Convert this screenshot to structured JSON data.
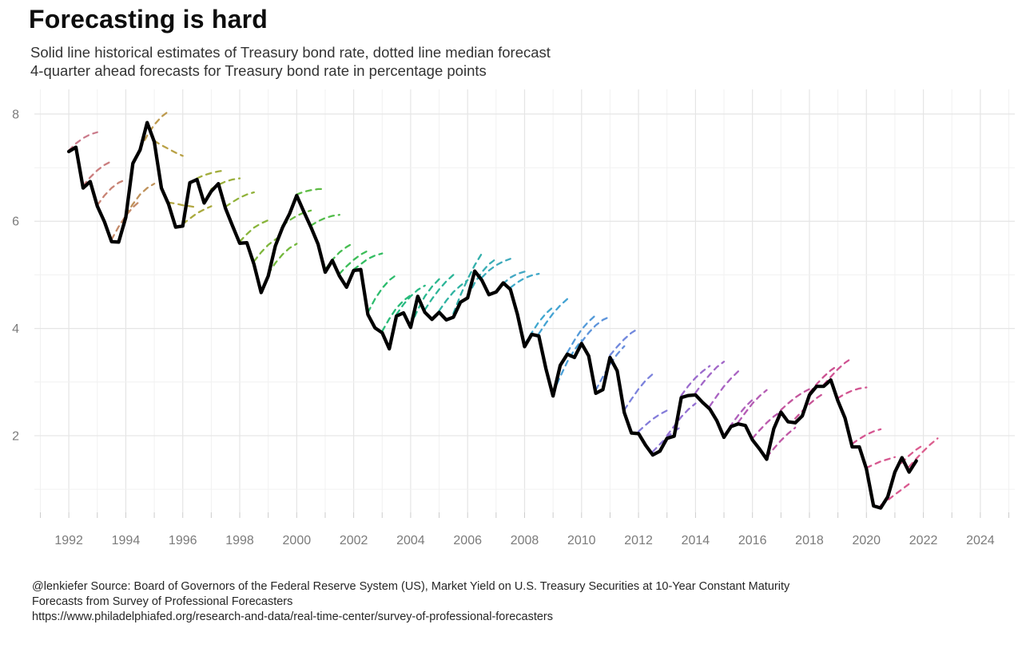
{
  "header": {
    "title": "Forecasting is hard",
    "subtitle_line1": "Solid line historical estimates of Treasury bond rate, dotted line median forecast",
    "subtitle_line2": "4-quarter ahead forecasts for Treasury bond rate in percentage points"
  },
  "footer": {
    "line1": "@lenkiefer Source: Board of Governors of the Federal Reserve System (US), Market Yield on U.S. Treasury Securities at 10-Year Constant Maturity",
    "line2": "Forecasts from Survey of Professional Forecasters",
    "line3": "https://www.philadelphiafed.org/research-and-data/real-time-center/survey-of-professional-forecasters"
  },
  "chart_data": {
    "type": "line",
    "title": "Forecasting is hard",
    "xlabel": "",
    "ylabel": "",
    "x_domain": [
      1990.79,
      2025.21
    ],
    "y_domain": [
      0.57,
      8.46
    ],
    "x_tick_labels": [
      1992,
      1994,
      1996,
      1998,
      2000,
      2002,
      2004,
      2006,
      2008,
      2010,
      2012,
      2014,
      2016,
      2018,
      2020,
      2022,
      2024
    ],
    "y_tick_labels": [
      2,
      4,
      6,
      8
    ],
    "grid": {
      "major_color": "#e5e5e5",
      "minor_color": "#f1f1f1",
      "tick_color": "#cccccc",
      "x_minor_step": 1,
      "y_minor": [
        1,
        3,
        5,
        7
      ],
      "y_major": [
        2,
        4,
        6,
        8
      ]
    },
    "legend": "none",
    "historical": {
      "name": "Historical estimates of Treasury bond rate (10-Year Constant Maturity)",
      "color": "#000000",
      "x_start": 1992.0,
      "x_step": 0.25,
      "values": [
        7.3,
        7.38,
        6.62,
        6.74,
        6.28,
        5.99,
        5.62,
        5.61,
        6.07,
        7.08,
        7.33,
        7.84,
        7.48,
        6.62,
        6.32,
        5.89,
        5.91,
        6.72,
        6.78,
        6.34,
        6.56,
        6.7,
        6.24,
        5.91,
        5.59,
        5.6,
        5.2,
        4.67,
        4.98,
        5.54,
        5.88,
        6.14,
        6.48,
        6.18,
        5.89,
        5.57,
        5.05,
        5.27,
        4.98,
        4.77,
        5.08,
        5.1,
        4.26,
        4.01,
        3.92,
        3.62,
        4.23,
        4.29,
        4.02,
        4.6,
        4.3,
        4.17,
        4.3,
        4.16,
        4.21,
        4.49,
        4.57,
        5.07,
        4.9,
        4.63,
        4.68,
        4.85,
        4.73,
        4.26,
        3.66,
        3.89,
        3.86,
        3.25,
        2.74,
        3.31,
        3.52,
        3.46,
        3.72,
        3.49,
        2.79,
        2.86,
        3.46,
        3.21,
        2.43,
        2.05,
        2.04,
        1.82,
        1.64,
        1.71,
        1.95,
        1.99,
        2.71,
        2.75,
        2.76,
        2.62,
        2.5,
        2.28,
        1.97,
        2.17,
        2.22,
        2.19,
        1.92,
        1.75,
        1.56,
        2.13,
        2.44,
        2.26,
        2.24,
        2.37,
        2.76,
        2.92,
        2.92,
        3.04,
        2.65,
        2.33,
        1.79,
        1.79,
        1.38,
        0.69,
        0.65,
        0.86,
        1.32,
        1.59,
        1.32,
        1.53
      ]
    },
    "forecast_series": {
      "name": "Median 4-quarter ahead forecasts, Survey of Professional Forecasters",
      "style": "dashed",
      "x_step": 0.25,
      "segments": [
        {
          "start": 1992.0,
          "color": "#cb7c8c",
          "values": [
            7.32,
            7.45,
            7.55,
            7.62,
            7.66
          ]
        },
        {
          "start": 1992.5,
          "color": "#cb7e7f",
          "values": [
            6.66,
            6.82,
            6.95,
            7.05,
            7.12
          ]
        },
        {
          "start": 1993.0,
          "color": "#c88374",
          "values": [
            6.3,
            6.48,
            6.62,
            6.72,
            6.78
          ]
        },
        {
          "start": 1993.5,
          "color": "#c48a69",
          "values": [
            5.66,
            5.9,
            6.1,
            6.26,
            6.38
          ]
        },
        {
          "start": 1994.0,
          "color": "#bf925b",
          "values": [
            6.12,
            6.32,
            6.5,
            6.62,
            6.7
          ]
        },
        {
          "start": 1994.5,
          "color": "#bd9a4e",
          "values": [
            7.35,
            7.6,
            7.8,
            7.95,
            8.05
          ]
        },
        {
          "start": 1995.0,
          "color": "#b9a146",
          "values": [
            7.5,
            7.42,
            7.35,
            7.28,
            7.22
          ]
        },
        {
          "start": 1995.5,
          "color": "#b2a742",
          "values": [
            6.35,
            6.33,
            6.3,
            6.28,
            6.26
          ]
        },
        {
          "start": 1996.0,
          "color": "#aaaa3e",
          "values": [
            5.95,
            6.05,
            6.15,
            6.22,
            6.28
          ]
        },
        {
          "start": 1996.5,
          "color": "#a2ad3c",
          "values": [
            6.8,
            6.86,
            6.9,
            6.93,
            6.95
          ]
        },
        {
          "start": 1997.0,
          "color": "#9aaf3b",
          "values": [
            6.6,
            6.68,
            6.74,
            6.78,
            6.8
          ]
        },
        {
          "start": 1997.5,
          "color": "#91b23a",
          "values": [
            6.27,
            6.36,
            6.44,
            6.5,
            6.54
          ]
        },
        {
          "start": 1998.0,
          "color": "#88b43a",
          "values": [
            5.62,
            5.76,
            5.88,
            5.96,
            6.02
          ]
        },
        {
          "start": 1998.5,
          "color": "#7eb63b",
          "values": [
            5.25,
            5.42,
            5.56,
            5.66,
            5.74
          ]
        },
        {
          "start": 1999.0,
          "color": "#73b83d",
          "values": [
            5.02,
            5.22,
            5.38,
            5.5,
            5.58
          ]
        },
        {
          "start": 1999.5,
          "color": "#68ba40",
          "values": [
            5.92,
            6.02,
            6.1,
            6.16,
            6.2
          ]
        },
        {
          "start": 2000.0,
          "color": "#5dbb44",
          "values": [
            6.5,
            6.55,
            6.58,
            6.6,
            6.6
          ]
        },
        {
          "start": 2000.5,
          "color": "#51bc49",
          "values": [
            5.92,
            6.0,
            6.06,
            6.1,
            6.12
          ]
        },
        {
          "start": 2001.0,
          "color": "#46bd50",
          "values": [
            5.1,
            5.28,
            5.42,
            5.52,
            5.6
          ]
        },
        {
          "start": 2001.5,
          "color": "#3cbd58",
          "values": [
            5.02,
            5.16,
            5.28,
            5.38,
            5.45
          ]
        },
        {
          "start": 2002.0,
          "color": "#33bd62",
          "values": [
            5.1,
            5.2,
            5.3,
            5.36,
            5.4
          ]
        },
        {
          "start": 2002.5,
          "color": "#2dbc6d",
          "values": [
            4.3,
            4.55,
            4.75,
            4.9,
            5.0
          ]
        },
        {
          "start": 2003.0,
          "color": "#29bb78",
          "values": [
            3.95,
            4.18,
            4.38,
            4.52,
            4.62
          ]
        },
        {
          "start": 2003.5,
          "color": "#28b983",
          "values": [
            4.26,
            4.45,
            4.6,
            4.72,
            4.8
          ]
        },
        {
          "start": 2004.0,
          "color": "#29b78e",
          "values": [
            4.05,
            4.35,
            4.6,
            4.78,
            4.92
          ]
        },
        {
          "start": 2004.5,
          "color": "#2cb598",
          "values": [
            4.35,
            4.55,
            4.73,
            4.88,
            5.0
          ]
        },
        {
          "start": 2005.0,
          "color": "#2fb3a2",
          "values": [
            4.33,
            4.52,
            4.68,
            4.8,
            4.9
          ]
        },
        {
          "start": 2005.5,
          "color": "#33b0ab",
          "values": [
            4.28,
            4.62,
            4.92,
            5.18,
            5.4
          ]
        },
        {
          "start": 2006.0,
          "color": "#38adb4",
          "values": [
            4.6,
            4.85,
            5.05,
            5.2,
            5.3
          ]
        },
        {
          "start": 2006.5,
          "color": "#3daabc",
          "values": [
            4.95,
            5.08,
            5.18,
            5.25,
            5.3
          ]
        },
        {
          "start": 2007.0,
          "color": "#43a7c3",
          "values": [
            4.7,
            4.84,
            4.95,
            5.02,
            5.06
          ]
        },
        {
          "start": 2007.5,
          "color": "#3fa9c9",
          "values": [
            4.76,
            4.86,
            4.94,
            4.99,
            5.02
          ]
        },
        {
          "start": 2008.0,
          "color": "#3fa7cf",
          "values": [
            3.7,
            3.92,
            4.12,
            4.28,
            4.4
          ]
        },
        {
          "start": 2008.5,
          "color": "#44a3d3",
          "values": [
            3.9,
            4.1,
            4.28,
            4.43,
            4.55
          ]
        },
        {
          "start": 2009.0,
          "color": "#4a9fd7",
          "values": [
            2.8,
            3.1,
            3.38,
            3.6,
            3.78
          ]
        },
        {
          "start": 2009.5,
          "color": "#539ad9",
          "values": [
            3.55,
            3.78,
            3.98,
            4.13,
            4.25
          ]
        },
        {
          "start": 2010.0,
          "color": "#5d94db",
          "values": [
            3.75,
            3.92,
            4.06,
            4.16,
            4.22
          ]
        },
        {
          "start": 2010.5,
          "color": "#678edc",
          "values": [
            2.85,
            3.1,
            3.33,
            3.52,
            3.67
          ]
        },
        {
          "start": 2011.0,
          "color": "#7188dd",
          "values": [
            3.5,
            3.66,
            3.8,
            3.92,
            4.0
          ]
        },
        {
          "start": 2011.5,
          "color": "#7b82dc",
          "values": [
            2.48,
            2.68,
            2.87,
            3.03,
            3.15
          ]
        },
        {
          "start": 2012.0,
          "color": "#847cda",
          "values": [
            2.08,
            2.2,
            2.31,
            2.4,
            2.47
          ]
        },
        {
          "start": 2012.5,
          "color": "#8d76d6",
          "values": [
            1.7,
            1.84,
            1.97,
            2.08,
            2.17
          ]
        },
        {
          "start": 2013.0,
          "color": "#9470d2",
          "values": [
            2.0,
            2.18,
            2.35,
            2.49,
            2.6
          ]
        },
        {
          "start": 2013.5,
          "color": "#9b6bcd",
          "values": [
            2.75,
            2.93,
            3.08,
            3.2,
            3.3
          ]
        },
        {
          "start": 2014.0,
          "color": "#a267c8",
          "values": [
            2.8,
            2.98,
            3.14,
            3.28,
            3.38
          ]
        },
        {
          "start": 2014.5,
          "color": "#a963c2",
          "values": [
            2.55,
            2.74,
            2.92,
            3.07,
            3.2
          ]
        },
        {
          "start": 2015.0,
          "color": "#af5fbb",
          "values": [
            2.0,
            2.2,
            2.38,
            2.54,
            2.67
          ]
        },
        {
          "start": 2015.5,
          "color": "#b55cb4",
          "values": [
            2.25,
            2.43,
            2.6,
            2.74,
            2.85
          ]
        },
        {
          "start": 2016.0,
          "color": "#bb59ad",
          "values": [
            1.95,
            2.1,
            2.24,
            2.36,
            2.45
          ]
        },
        {
          "start": 2016.5,
          "color": "#c057a5",
          "values": [
            1.6,
            1.76,
            1.91,
            2.04,
            2.15
          ]
        },
        {
          "start": 2017.0,
          "color": "#c4559d",
          "values": [
            2.48,
            2.6,
            2.71,
            2.8,
            2.87
          ]
        },
        {
          "start": 2017.5,
          "color": "#c85496",
          "values": [
            2.32,
            2.46,
            2.59,
            2.7,
            2.79
          ]
        },
        {
          "start": 2018.0,
          "color": "#cc5292",
          "values": [
            2.8,
            2.96,
            3.1,
            3.22,
            3.31
          ]
        },
        {
          "start": 2018.5,
          "color": "#cf5392",
          "values": [
            2.95,
            3.1,
            3.24,
            3.36,
            3.45
          ]
        },
        {
          "start": 2019.0,
          "color": "#d25491",
          "values": [
            2.7,
            2.78,
            2.84,
            2.88,
            2.9
          ]
        },
        {
          "start": 2019.5,
          "color": "#d55691",
          "values": [
            1.85,
            1.94,
            2.02,
            2.08,
            2.12
          ]
        },
        {
          "start": 2020.0,
          "color": "#d75890",
          "values": [
            1.4,
            1.46,
            1.52,
            1.56,
            1.6
          ]
        },
        {
          "start": 2020.5,
          "color": "#d95a90",
          "values": [
            0.7,
            0.8,
            0.9,
            1.0,
            1.1
          ]
        },
        {
          "start": 2021.0,
          "color": "#db5c8f",
          "values": [
            1.35,
            1.5,
            1.63,
            1.74,
            1.83
          ]
        },
        {
          "start": 2021.5,
          "color": "#dc5e8e",
          "values": [
            1.42,
            1.57,
            1.71,
            1.84,
            1.95
          ]
        }
      ]
    }
  }
}
